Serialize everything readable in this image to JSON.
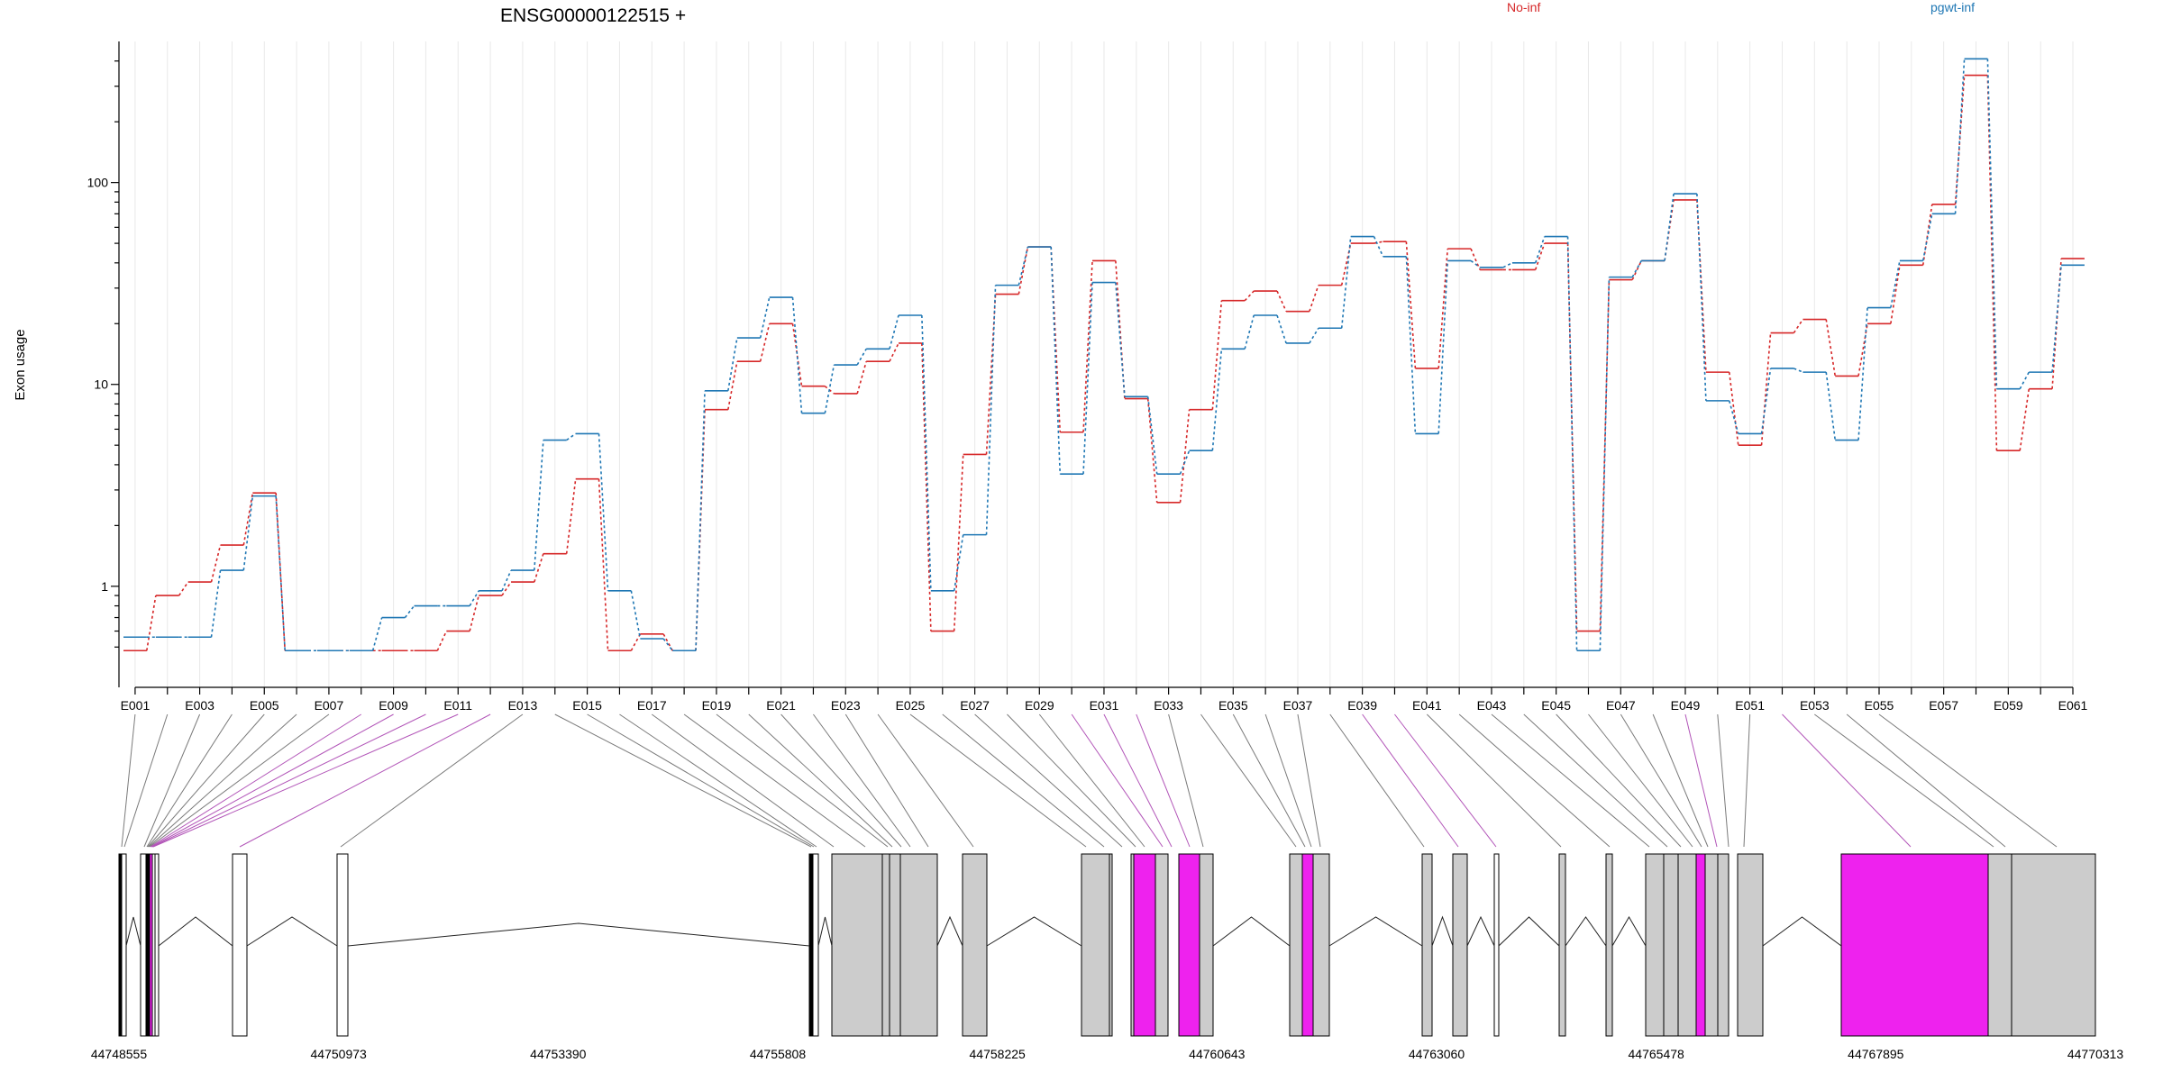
{
  "chart_data": {
    "type": "line",
    "title": "ENSG00000122515 +",
    "ylabel": "Exon usage",
    "yscale": "log",
    "ylim": [
      0.4,
      500
    ],
    "yticks": [
      1,
      10,
      100
    ],
    "ytick_labels": [
      "1",
      "10",
      "100"
    ],
    "legend": [
      "No-inf",
      "pgwt-inf"
    ],
    "grid": "vertical",
    "colors": {
      "No-inf": "#d62728",
      "pgwt-inf": "#1f77b4",
      "differential": "#ee22ee",
      "exon": "#cccccc"
    },
    "categories": [
      "E001",
      "E002",
      "E003",
      "E004",
      "E005",
      "E006",
      "E007",
      "E008",
      "E009",
      "E010",
      "E011",
      "E012",
      "E013",
      "E014",
      "E015",
      "E016",
      "E017",
      "E018",
      "E019",
      "E020",
      "E021",
      "E022",
      "E023",
      "E024",
      "E025",
      "E026",
      "E027",
      "E028",
      "E029",
      "E030",
      "E031",
      "E032",
      "E033",
      "E034",
      "E035",
      "E036",
      "E037",
      "E038",
      "E039",
      "E040",
      "E041",
      "E042",
      "E043",
      "E044",
      "E045",
      "E046",
      "E047",
      "E048",
      "E049",
      "E050",
      "E051",
      "E052",
      "E053",
      "E054",
      "E055",
      "E056",
      "E057",
      "E058",
      "E059",
      "E060",
      "E061"
    ],
    "tick_labels": [
      "E001",
      "E003",
      "E005",
      "E007",
      "E009",
      "E011",
      "E013",
      "E015",
      "E017",
      "E019",
      "E021",
      "E023",
      "E025",
      "E027",
      "E029",
      "E031",
      "E033",
      "E035",
      "E037",
      "E039",
      "E041",
      "E043",
      "E045",
      "E047",
      "E049",
      "E051",
      "E053",
      "E055",
      "E057",
      "E059",
      "E061"
    ],
    "series": [
      {
        "name": "No-inf",
        "values": [
          0.48,
          0.9,
          1.05,
          1.6,
          2.9,
          0.48,
          0.48,
          0.48,
          0.48,
          0.48,
          0.6,
          0.9,
          1.05,
          1.45,
          3.4,
          0.48,
          0.58,
          0.48,
          7.5,
          13,
          20,
          9.8,
          9,
          13,
          16,
          0.6,
          4.5,
          28,
          48,
          5.8,
          41,
          8.5,
          2.6,
          7.5,
          26,
          29,
          23,
          31,
          50,
          51,
          12,
          47,
          37,
          37,
          50,
          0.6,
          33,
          41,
          82,
          11.5,
          5,
          18,
          21,
          11,
          20,
          39,
          78,
          340,
          4.7,
          9.5,
          42
        ]
      },
      {
        "name": "pgwt-inf",
        "values": [
          0.56,
          0.56,
          0.56,
          1.2,
          2.8,
          0.48,
          0.48,
          0.48,
          0.7,
          0.8,
          0.8,
          0.95,
          1.2,
          5.3,
          5.7,
          0.95,
          0.55,
          0.48,
          9.3,
          17,
          27,
          7.2,
          12.5,
          15,
          22,
          0.95,
          1.8,
          31,
          48,
          3.6,
          32,
          8.7,
          3.6,
          4.7,
          15,
          22,
          16,
          19,
          54,
          43,
          5.7,
          41,
          38,
          40,
          54,
          0.48,
          34,
          41,
          88,
          8.3,
          5.7,
          12,
          11.5,
          5.3,
          24,
          41,
          70,
          410,
          9.5,
          11.5,
          39
        ]
      }
    ],
    "genome_ticks": [
      "44748555",
      "44750973",
      "44753390",
      "44755808",
      "44758225",
      "44760643",
      "44763060",
      "44765478",
      "44767895",
      "44770313"
    ]
  }
}
